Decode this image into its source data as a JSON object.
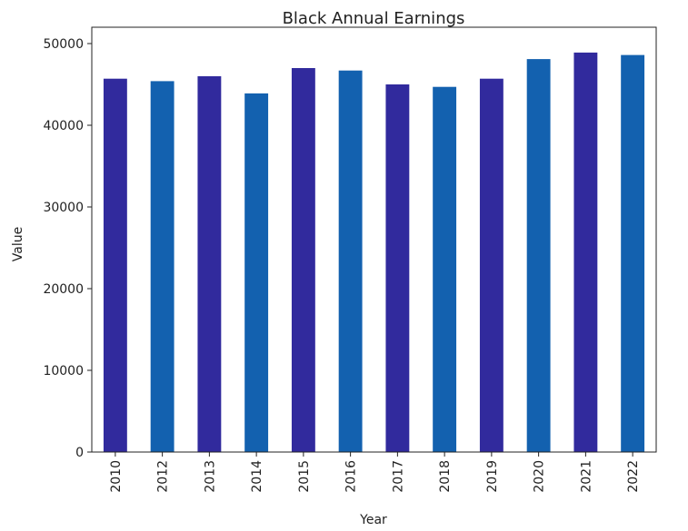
{
  "chart_data": {
    "type": "bar",
    "title": "Black Annual Earnings",
    "xlabel": "Year",
    "ylabel": "Value",
    "categories": [
      "2010",
      "2012",
      "2013",
      "2014",
      "2015",
      "2016",
      "2017",
      "2018",
      "2019",
      "2020",
      "2021",
      "2022"
    ],
    "values": [
      45700,
      45400,
      46000,
      43900,
      47000,
      46700,
      45000,
      44700,
      45700,
      48100,
      48900,
      48600
    ],
    "ylim": [
      0,
      52000
    ],
    "yticks": [
      0,
      10000,
      20000,
      30000,
      40000,
      50000
    ],
    "bar_colors": [
      "#312a9d",
      "#1361af"
    ],
    "grid": false,
    "legend": "none"
  }
}
